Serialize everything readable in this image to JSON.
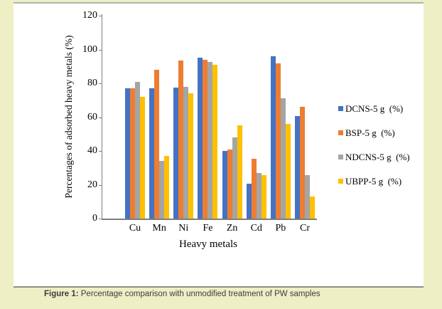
{
  "figure": {
    "caption_label": "Figure 1:",
    "caption_text": " Percentage comparison with unmodified treatment of PW samples"
  },
  "chart_data": {
    "type": "bar",
    "title": "",
    "xlabel": "Heavy metals",
    "ylabel": "Percentages of adsorbed heavy metals (%)",
    "ylim": [
      0,
      120
    ],
    "ytick_step": 20,
    "grid": false,
    "legend_position": "right",
    "categories": [
      "Cu",
      "Mn",
      "Ni",
      "Fe",
      "Zn",
      "Cd",
      "Pb",
      "Cr"
    ],
    "series": [
      {
        "name": "DCNS-5 g  (%)",
        "color": "#4472C4",
        "values": [
          77,
          77,
          77.5,
          95,
          40,
          20.5,
          96,
          60.5
        ]
      },
      {
        "name": "BSP-5 g  (%)",
        "color": "#ED7D31",
        "values": [
          77,
          88,
          93.5,
          94,
          41,
          35.5,
          92,
          66
        ]
      },
      {
        "name": "NDCNS-5 g  (%)",
        "color": "#A5A5A5",
        "values": [
          81,
          34,
          78,
          92.5,
          48,
          27,
          71,
          25.5
        ]
      },
      {
        "name": "UBPP-5 g  (%)",
        "color": "#FFC000",
        "values": [
          72,
          37,
          74,
          91,
          55,
          25.5,
          56,
          13
        ]
      }
    ]
  },
  "colors": {
    "page_bg": "#EFEFC6",
    "panel_bg": "#FFFFFF",
    "panel_border_top": "#B2B2AA",
    "panel_border_bottom": "#8E8E86",
    "axis": "#7F7F7F",
    "text": "#000000",
    "caption_text": "#3C3C3C"
  }
}
